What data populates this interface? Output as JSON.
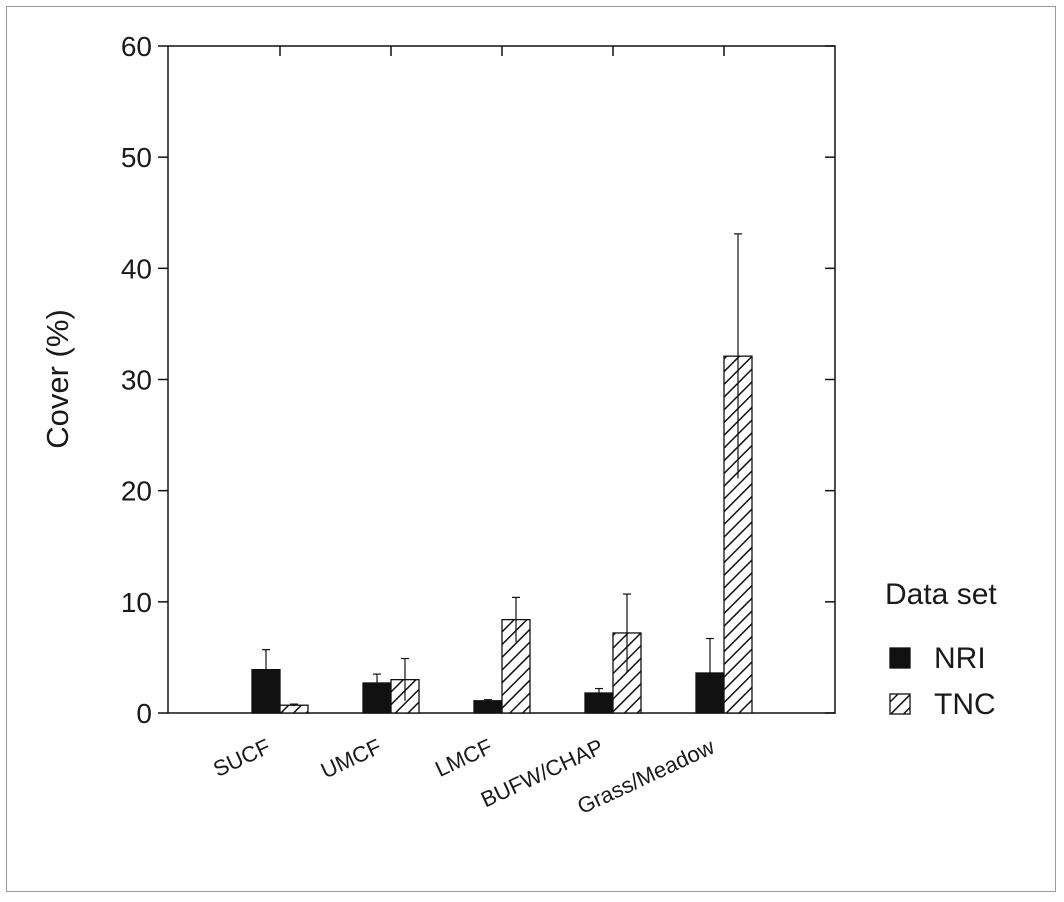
{
  "chart_data": {
    "type": "bar",
    "title": "",
    "xlabel": "",
    "ylabel": "Cover (%)",
    "ylim": [
      0,
      60
    ],
    "yticks": [
      "0",
      "10",
      "20",
      "30",
      "40",
      "50",
      "60"
    ],
    "categories": [
      "SUCF",
      "UMCF",
      "LMCF",
      "BUFW/CHAP",
      "Grass/Meadow"
    ],
    "series": [
      {
        "name": "NRI",
        "values": [
          3.9,
          2.7,
          1.1,
          1.8,
          3.6
        ],
        "errors": [
          1.8,
          0.8,
          0.1,
          0.4,
          3.1
        ],
        "fill": "#111111"
      },
      {
        "name": "TNC",
        "values": [
          0.7,
          3.0,
          8.4,
          7.2,
          32.1
        ],
        "errors": [
          0.1,
          1.9,
          2.0,
          3.5,
          11.0
        ],
        "fill": "hatch"
      }
    ],
    "legend": {
      "title": "Data set",
      "position": "right"
    },
    "grid": false,
    "error_bars": true
  }
}
